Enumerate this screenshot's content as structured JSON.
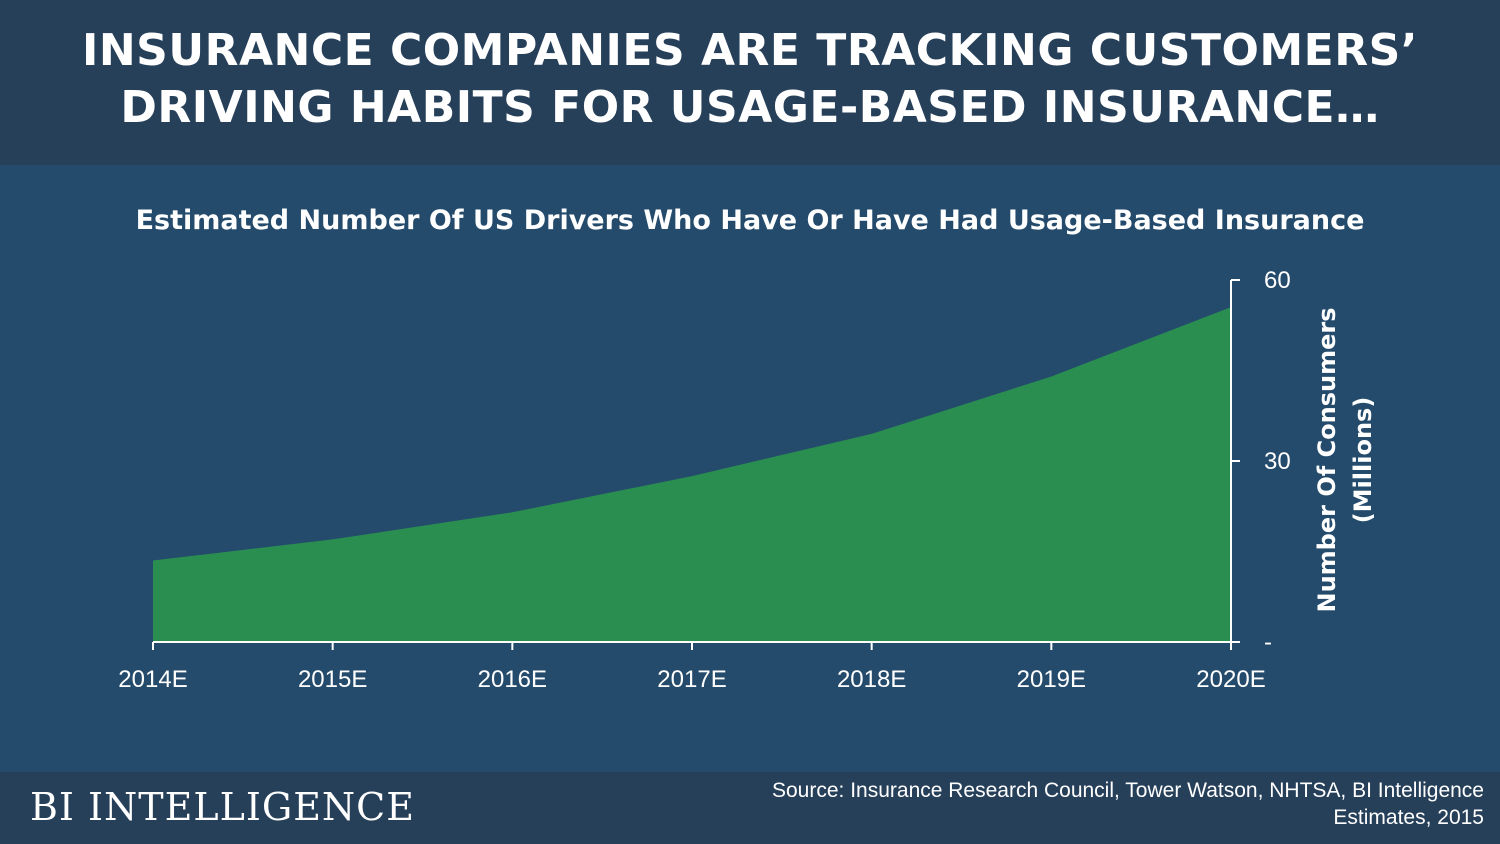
{
  "header": {
    "headline_line1": "INSURANCE COMPANIES ARE TRACKING CUSTOMERS’",
    "headline_line2": "DRIVING HABITS FOR USAGE-BASED INSURANCE…"
  },
  "footer": {
    "brand": "BI INTELLIGENCE",
    "source_line1": "Source: Insurance Research Council, Tower Watson, NHTSA, BI Intelligence",
    "source_line2": "Estimates, 2015"
  },
  "colors": {
    "background": "#244b6c",
    "header_footer": "#27405a",
    "area_fill": "#2a8e51",
    "text": "#ffffff"
  },
  "chart_data": {
    "type": "area",
    "title": "Estimated Number Of US Drivers Who Have Or Have Had Usage-Based Insurance",
    "categories": [
      "2014E",
      "2015E",
      "2016E",
      "2017E",
      "2018E",
      "2019E",
      "2020E"
    ],
    "values": [
      13.5,
      17,
      21.5,
      27.5,
      34.5,
      44,
      55.5
    ],
    "ylabel_line1": "Number Of Consumers",
    "ylabel_line2": "(Millions)",
    "yticks": [
      {
        "value": 0,
        "label": "-"
      },
      {
        "value": 30,
        "label": "30"
      },
      {
        "value": 60,
        "label": "60"
      }
    ],
    "ylim": [
      0,
      60
    ],
    "y_axis_side": "right",
    "grid": false,
    "legend": "none"
  }
}
